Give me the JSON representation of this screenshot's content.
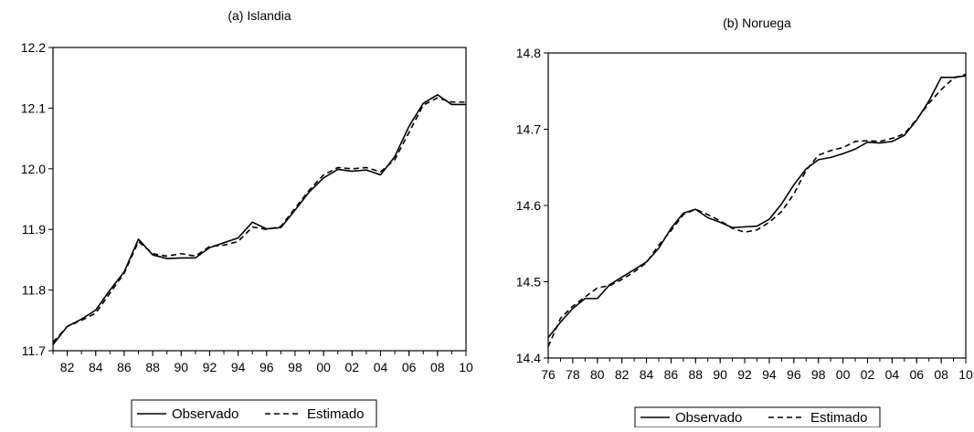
{
  "chart_data": [
    {
      "type": "line",
      "title": "(a) Islandia",
      "xlabel": "",
      "ylabel": "",
      "x": [
        1981,
        1982,
        1983,
        1984,
        1985,
        1986,
        1987,
        1988,
        1989,
        1990,
        1991,
        1992,
        1993,
        1994,
        1995,
        1996,
        1997,
        1998,
        1999,
        2000,
        2001,
        2002,
        2003,
        2004,
        2005,
        2006,
        2007,
        2008,
        2009,
        2010
      ],
      "xlim": [
        1981,
        2010
      ],
      "ylim": [
        11.7,
        12.2
      ],
      "x_tick_values": [
        1982,
        1984,
        1986,
        1988,
        1990,
        1992,
        1994,
        1996,
        1998,
        2000,
        2002,
        2004,
        2006,
        2008,
        2010
      ],
      "x_tick_labels": [
        "82",
        "84",
        "86",
        "88",
        "90",
        "92",
        "94",
        "96",
        "98",
        "00",
        "02",
        "04",
        "06",
        "08",
        "10"
      ],
      "y_tick_values": [
        11.7,
        11.8,
        11.9,
        12.0,
        12.1,
        12.2
      ],
      "y_tick_labels": [
        "11.7",
        "11.8",
        "11.9",
        "12.0",
        "12.1",
        "12.2"
      ],
      "series": [
        {
          "name": "Observado",
          "style": "solid",
          "values": [
            11.71,
            11.74,
            11.752,
            11.767,
            11.8,
            11.83,
            11.884,
            11.858,
            11.852,
            11.853,
            11.853,
            11.87,
            11.878,
            11.886,
            11.912,
            11.901,
            11.903,
            11.932,
            11.962,
            11.985,
            11.999,
            11.996,
            11.998,
            11.99,
            12.02,
            12.07,
            12.108,
            12.122,
            12.106,
            12.106
          ]
        },
        {
          "name": "Estimado",
          "style": "dashed",
          "values": [
            11.714,
            11.74,
            11.75,
            11.762,
            11.795,
            11.828,
            11.88,
            11.86,
            11.856,
            11.86,
            11.856,
            11.872,
            11.874,
            11.88,
            11.904,
            11.9,
            11.905,
            11.935,
            11.965,
            11.99,
            12.002,
            12.0,
            12.002,
            11.995,
            12.015,
            12.06,
            12.105,
            12.117,
            12.11,
            12.11
          ]
        }
      ],
      "legend_position": "bottom"
    },
    {
      "type": "line",
      "title": "(b) Noruega",
      "xlabel": "",
      "ylabel": "",
      "x": [
        1976,
        1977,
        1978,
        1979,
        1980,
        1981,
        1982,
        1983,
        1984,
        1985,
        1986,
        1987,
        1988,
        1989,
        1990,
        1991,
        1992,
        1993,
        1994,
        1995,
        1996,
        1997,
        1998,
        1999,
        2000,
        2001,
        2002,
        2003,
        2004,
        2005,
        2006,
        2007,
        2008,
        2009,
        2010
      ],
      "xlim": [
        1976,
        2010
      ],
      "ylim": [
        14.4,
        14.8
      ],
      "x_tick_values": [
        1976,
        1978,
        1980,
        1982,
        1984,
        1986,
        1988,
        1990,
        1992,
        1994,
        1996,
        1998,
        2000,
        2002,
        2004,
        2006,
        2008,
        2010
      ],
      "x_tick_labels": [
        "76",
        "78",
        "80",
        "82",
        "84",
        "86",
        "88",
        "90",
        "92",
        "94",
        "96",
        "98",
        "00",
        "02",
        "04",
        "06",
        "08",
        "10"
      ],
      "y_tick_values": [
        14.4,
        14.5,
        14.6,
        14.7,
        14.8
      ],
      "y_tick_labels": [
        "14.4",
        "14.5",
        "14.6",
        "14.7",
        "14.8"
      ],
      "series": [
        {
          "name": "Observado",
          "style": "solid",
          "values": [
            14.427,
            14.447,
            14.465,
            14.478,
            14.478,
            14.496,
            14.506,
            14.516,
            14.526,
            14.544,
            14.57,
            14.59,
            14.595,
            14.584,
            14.578,
            14.571,
            14.572,
            14.573,
            14.582,
            14.602,
            14.627,
            14.648,
            14.66,
            14.663,
            14.668,
            14.674,
            14.683,
            14.682,
            14.684,
            14.692,
            14.712,
            14.737,
            14.768,
            14.768,
            14.77
          ]
        },
        {
          "name": "Estimado",
          "style": "dashed",
          "values": [
            14.415,
            14.452,
            14.468,
            14.48,
            14.492,
            14.495,
            14.503,
            14.513,
            14.525,
            14.548,
            14.567,
            14.588,
            14.595,
            14.588,
            14.58,
            14.57,
            14.565,
            14.568,
            14.578,
            14.592,
            14.615,
            14.646,
            14.666,
            14.672,
            14.676,
            14.684,
            14.685,
            14.684,
            14.688,
            14.694,
            14.713,
            14.734,
            14.752,
            14.767,
            14.772
          ]
        }
      ],
      "legend_position": "bottom"
    }
  ]
}
